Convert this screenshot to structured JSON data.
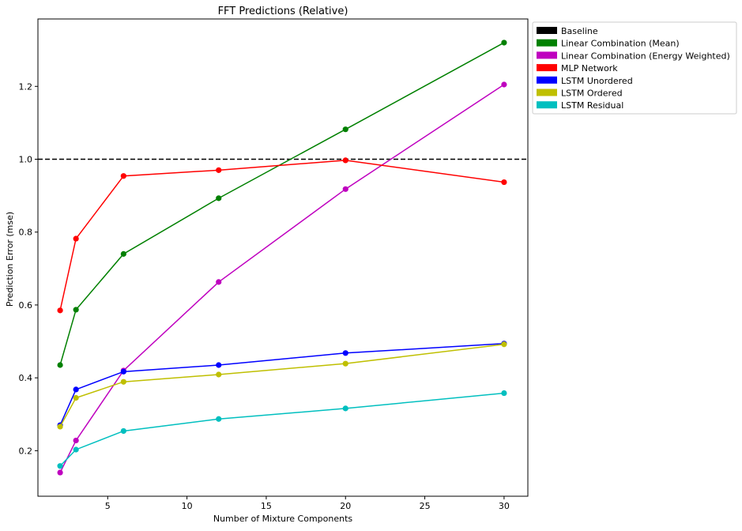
{
  "chart_data": {
    "type": "line",
    "title": "FFT Predictions (Relative)",
    "xlabel": "Number of Mixture Components",
    "ylabel": "Prediction Error (mse)",
    "xlim": [
      0.6,
      31.5
    ],
    "ylim": [
      0.075,
      1.385
    ],
    "xticks": [
      5,
      10,
      15,
      20,
      25,
      30
    ],
    "yticks": [
      0.2,
      0.4,
      0.6,
      0.8,
      1.0,
      1.2
    ],
    "grid": false,
    "legend_position": "outside-top-right",
    "baseline": {
      "name": "Baseline",
      "y": 1.0,
      "color": "#000000",
      "style": "dashed"
    },
    "x": [
      2,
      3,
      6,
      12,
      20,
      30
    ],
    "series": [
      {
        "name": "Linear Combination (Mean)",
        "color": "#008000",
        "values": [
          0.435,
          0.587,
          0.74,
          0.893,
          1.082,
          1.32
        ]
      },
      {
        "name": "Linear Combination (Energy Weighted)",
        "color": "#bf00bf",
        "values": [
          0.14,
          0.228,
          0.42,
          0.663,
          0.918,
          1.205
        ]
      },
      {
        "name": "MLP Network",
        "color": "#ff0000",
        "values": [
          0.585,
          0.782,
          0.954,
          0.97,
          0.997,
          0.937
        ]
      },
      {
        "name": "LSTM Unordered",
        "color": "#0000ff",
        "values": [
          0.27,
          0.368,
          0.417,
          0.435,
          0.468,
          0.494
        ]
      },
      {
        "name": "LSTM Ordered",
        "color": "#bfbf00",
        "values": [
          0.266,
          0.345,
          0.389,
          0.409,
          0.439,
          0.492
        ]
      },
      {
        "name": "LSTM Residual",
        "color": "#00bfbf",
        "values": [
          0.158,
          0.203,
          0.254,
          0.287,
          0.316,
          0.358
        ]
      }
    ],
    "legend": [
      {
        "label": "Baseline",
        "color": "#000000"
      },
      {
        "label": "Linear Combination (Mean)",
        "color": "#008000"
      },
      {
        "label": "Linear Combination (Energy Weighted)",
        "color": "#bf00bf"
      },
      {
        "label": "MLP Network",
        "color": "#ff0000"
      },
      {
        "label": "LSTM Unordered",
        "color": "#0000ff"
      },
      {
        "label": "LSTM Ordered",
        "color": "#bfbf00"
      },
      {
        "label": "LSTM Residual",
        "color": "#00bfbf"
      }
    ]
  }
}
